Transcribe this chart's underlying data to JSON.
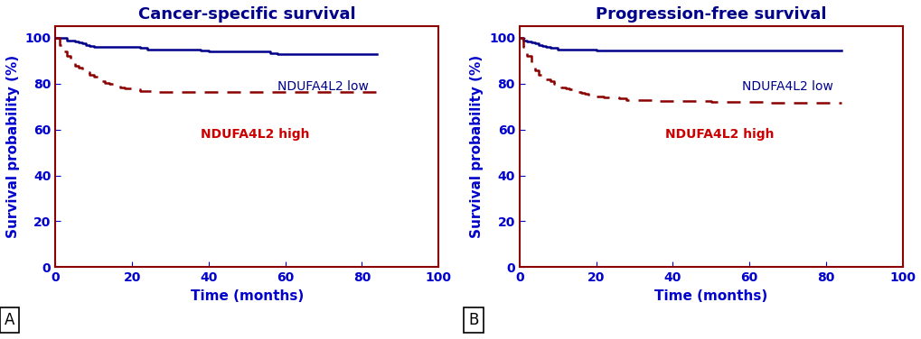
{
  "panel_A": {
    "title": "Cancer-specific survival",
    "low_x": [
      0,
      2,
      3,
      4,
      5,
      6,
      7,
      8,
      9,
      10,
      12,
      14,
      16,
      18,
      20,
      22,
      24,
      26,
      28,
      30,
      32,
      34,
      36,
      38,
      40,
      42,
      44,
      46,
      48,
      50,
      52,
      54,
      56,
      58,
      60,
      62,
      64,
      66,
      68,
      70,
      72,
      74,
      76,
      78,
      80,
      82,
      84
    ],
    "low_y": [
      100,
      100,
      99,
      99,
      98.5,
      98,
      97.5,
      97,
      96.5,
      96,
      96,
      96,
      96,
      96,
      96,
      95.5,
      95,
      95,
      95,
      95,
      95,
      95,
      95,
      94.5,
      94,
      94,
      94,
      94,
      94,
      94,
      94,
      94,
      93.5,
      93,
      93,
      93,
      93,
      93,
      93,
      93,
      93,
      93,
      93,
      93,
      93,
      93,
      93
    ],
    "high_x": [
      0,
      1,
      2,
      3,
      4,
      5,
      6,
      7,
      8,
      9,
      10,
      11,
      12,
      13,
      14,
      15,
      16,
      17,
      18,
      20,
      22,
      24,
      26,
      28,
      30,
      35,
      40,
      45,
      50,
      55,
      60,
      65,
      70,
      75,
      80,
      82,
      84
    ],
    "high_y": [
      100,
      97,
      94,
      92,
      90,
      88,
      87,
      86,
      85,
      84,
      83,
      82,
      81,
      80.5,
      80,
      79.5,
      79,
      78.5,
      78,
      77.5,
      77,
      77,
      76.5,
      76.5,
      76.5,
      76.5,
      76.5,
      76.5,
      76.5,
      76.5,
      76.5,
      76.5,
      76.5,
      76.5,
      76.5,
      76.5,
      76.5
    ]
  },
  "panel_B": {
    "title": "Progression-free survival",
    "low_x": [
      0,
      1,
      2,
      3,
      4,
      5,
      6,
      7,
      8,
      10,
      12,
      14,
      16,
      18,
      20,
      25,
      30,
      35,
      40,
      50,
      60,
      70,
      80,
      84
    ],
    "low_y": [
      100,
      99,
      98.5,
      98,
      97.5,
      97,
      96.5,
      96,
      95.5,
      95,
      95,
      95,
      95,
      95,
      94.5,
      94.5,
      94.5,
      94.5,
      94.5,
      94.5,
      94.5,
      94.5,
      94.5,
      94.5
    ],
    "high_x": [
      0,
      1,
      2,
      3,
      4,
      5,
      6,
      7,
      8,
      9,
      10,
      11,
      12,
      13,
      14,
      15,
      16,
      17,
      18,
      20,
      22,
      24,
      26,
      28,
      30,
      35,
      40,
      45,
      50,
      55,
      60,
      65,
      70,
      75,
      80,
      82,
      84
    ],
    "high_y": [
      100,
      96,
      92,
      89,
      86,
      84,
      83,
      82,
      81,
      80,
      79,
      78.5,
      78,
      77.5,
      77,
      76.5,
      76,
      75.5,
      75,
      74.5,
      74,
      74,
      73.5,
      73,
      73,
      72.5,
      72.5,
      72.5,
      72,
      72,
      72,
      71.5,
      71.5,
      71.5,
      71.5,
      71.5,
      71.5
    ]
  },
  "low_color": "#00008B",
  "high_color": "#8B0000",
  "label_low": "NDUFA4L2 low",
  "label_high": "NDUFA4L2 high",
  "xlabel": "Time (months)",
  "ylabel": "Survival probability (%)",
  "xlim": [
    0,
    100
  ],
  "ylim": [
    0,
    105
  ],
  "xticks": [
    0,
    20,
    40,
    60,
    80,
    100
  ],
  "yticks": [
    0,
    20,
    40,
    60,
    80,
    100
  ],
  "panel_labels": [
    "A",
    "B"
  ],
  "title_fontsize": 13,
  "label_fontsize": 11,
  "tick_fontsize": 10,
  "annotation_fontsize": 10,
  "box_color": "#8B0000",
  "bg_color": "#ffffff"
}
